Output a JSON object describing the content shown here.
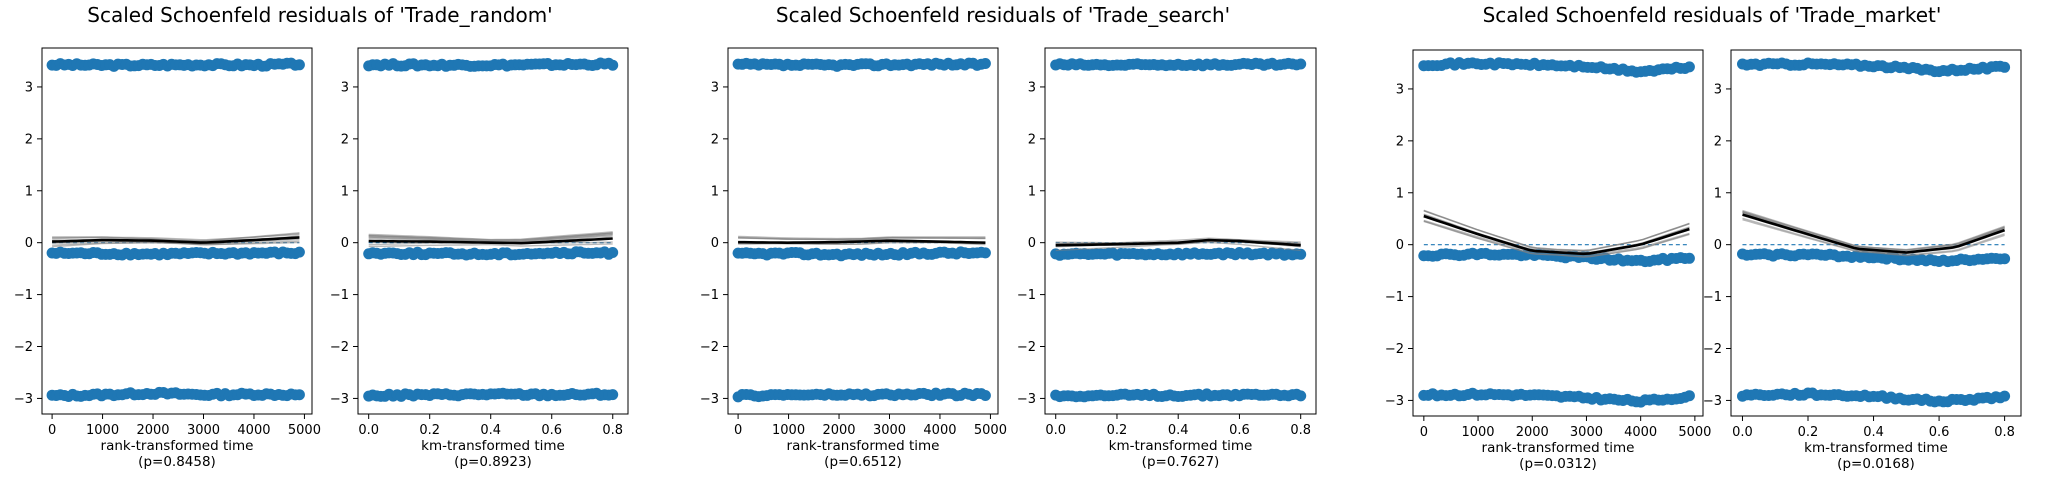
{
  "chart_data": [
    {
      "type": "scatter",
      "title": "Scaled Schoenfeld residuals of 'Trade_random'",
      "xlabel": "rank-transformed time",
      "pvalue": "(p=0.8458)",
      "xlim": [
        -200,
        5150
      ],
      "ylim": [
        -3.3,
        3.75
      ],
      "xticks": [
        0,
        1000,
        2000,
        3000,
        4000,
        5000
      ],
      "xtick_labels": [
        "0",
        "1000",
        "2000",
        "3000",
        "4000",
        "5000"
      ],
      "yticks": [
        -3,
        -2,
        -1,
        0,
        1,
        2,
        3
      ],
      "ytick_labels": [
        "−3",
        "−2",
        "−1",
        "0",
        "1",
        "2",
        "3"
      ],
      "point_color": "#1f77b4",
      "bands": [
        {
          "x": [
            0,
            1000,
            2000,
            3000,
            4000,
            4900
          ],
          "y": [
            3.43,
            3.42,
            3.42,
            3.43,
            3.42,
            3.44
          ]
        },
        {
          "x": [
            0,
            1000,
            2000,
            3000,
            4000,
            4900
          ],
          "y": [
            -0.2,
            -0.21,
            -0.22,
            -0.21,
            -0.2,
            -0.2
          ]
        },
        {
          "x": [
            0,
            1000,
            2000,
            3000,
            4000,
            4900
          ],
          "y": [
            -2.95,
            -2.93,
            -2.9,
            -2.93,
            -2.92,
            -2.93
          ]
        }
      ],
      "trend": {
        "x": [
          0,
          1000,
          2000,
          3000,
          4000,
          4900
        ],
        "y": [
          0.02,
          0.05,
          0.04,
          0.0,
          0.05,
          0.1
        ]
      },
      "zero_line": true
    },
    {
      "type": "scatter",
      "title": "",
      "xlabel": "km-transformed time",
      "pvalue": "(p=0.8923)",
      "xlim": [
        -0.035,
        0.85
      ],
      "ylim": [
        -3.3,
        3.75
      ],
      "xticks": [
        0,
        0.2,
        0.4,
        0.6,
        0.8
      ],
      "xtick_labels": [
        "0.0",
        "0.2",
        "0.4",
        "0.6",
        "0.8"
      ],
      "yticks": [
        -3,
        -2,
        -1,
        0,
        1,
        2,
        3
      ],
      "ytick_labels": [
        "−3",
        "−2",
        "−1",
        "0",
        "1",
        "2",
        "3"
      ],
      "point_color": "#1f77b4",
      "bands": [
        {
          "x": [
            0,
            0.2,
            0.4,
            0.6,
            0.8
          ],
          "y": [
            3.43,
            3.42,
            3.42,
            3.43,
            3.44
          ]
        },
        {
          "x": [
            0,
            0.2,
            0.4,
            0.6,
            0.8
          ],
          "y": [
            -0.2,
            -0.21,
            -0.22,
            -0.2,
            -0.2
          ]
        },
        {
          "x": [
            0,
            0.2,
            0.4,
            0.6,
            0.8
          ],
          "y": [
            -2.95,
            -2.93,
            -2.92,
            -2.93,
            -2.92
          ]
        }
      ],
      "trend": {
        "x": [
          0,
          0.2,
          0.4,
          0.5,
          0.6,
          0.8
        ],
        "y": [
          0.03,
          0.02,
          0.0,
          -0.01,
          0.02,
          0.08
        ]
      },
      "zero_line": true
    },
    {
      "type": "scatter",
      "title": "Scaled Schoenfeld residuals of 'Trade_search'",
      "xlabel": "rank-transformed time",
      "pvalue": "(p=0.6512)",
      "xlim": [
        -200,
        5150
      ],
      "ylim": [
        -3.3,
        3.75
      ],
      "xticks": [
        0,
        1000,
        2000,
        3000,
        4000,
        5000
      ],
      "xtick_labels": [
        "0",
        "1000",
        "2000",
        "3000",
        "4000",
        "5000"
      ],
      "yticks": [
        -3,
        -2,
        -1,
        0,
        1,
        2,
        3
      ],
      "ytick_labels": [
        "−3",
        "−2",
        "−1",
        "0",
        "1",
        "2",
        "3"
      ],
      "point_color": "#1f77b4",
      "bands": [
        {
          "x": [
            0,
            1000,
            2000,
            3000,
            4000,
            4900
          ],
          "y": [
            3.43,
            3.42,
            3.42,
            3.43,
            3.44,
            3.43
          ]
        },
        {
          "x": [
            0,
            1000,
            2000,
            3000,
            4000,
            4900
          ],
          "y": [
            -0.22,
            -0.21,
            -0.23,
            -0.22,
            -0.2,
            -0.2
          ]
        },
        {
          "x": [
            0,
            1000,
            2000,
            3000,
            4000,
            4900
          ],
          "y": [
            -2.95,
            -2.93,
            -2.93,
            -2.93,
            -2.92,
            -2.93
          ]
        }
      ],
      "trend": {
        "x": [
          0,
          1000,
          2000,
          3000,
          4000,
          4900
        ],
        "y": [
          0.01,
          0.0,
          0.01,
          0.04,
          0.02,
          0.0
        ]
      },
      "zero_line": true
    },
    {
      "type": "scatter",
      "title": "",
      "xlabel": "km-transformed time",
      "pvalue": "(p=0.7627)",
      "xlim": [
        -0.035,
        0.85
      ],
      "ylim": [
        -3.3,
        3.75
      ],
      "xticks": [
        0,
        0.2,
        0.4,
        0.6,
        0.8
      ],
      "xtick_labels": [
        "0.0",
        "0.2",
        "0.4",
        "0.6",
        "0.8"
      ],
      "yticks": [
        -3,
        -2,
        -1,
        0,
        1,
        2,
        3
      ],
      "ytick_labels": [
        "−3",
        "−2",
        "−1",
        "0",
        "1",
        "2",
        "3"
      ],
      "point_color": "#1f77b4",
      "bands": [
        {
          "x": [
            0,
            0.2,
            0.4,
            0.6,
            0.8
          ],
          "y": [
            3.43,
            3.42,
            3.43,
            3.43,
            3.43
          ]
        },
        {
          "x": [
            0,
            0.2,
            0.4,
            0.6,
            0.8
          ],
          "y": [
            -0.22,
            -0.22,
            -0.22,
            -0.21,
            -0.22
          ]
        },
        {
          "x": [
            0,
            0.2,
            0.4,
            0.6,
            0.8
          ],
          "y": [
            -2.95,
            -2.94,
            -2.94,
            -2.93,
            -2.93
          ]
        }
      ],
      "trend": {
        "x": [
          0,
          0.2,
          0.4,
          0.5,
          0.6,
          0.8
        ],
        "y": [
          -0.05,
          -0.03,
          0.0,
          0.05,
          0.03,
          -0.05
        ]
      },
      "zero_line": true
    },
    {
      "type": "scatter",
      "title": "Scaled Schoenfeld residuals of 'Trade_market'",
      "xlabel": "rank-transformed time",
      "pvalue": "(p=0.0312)",
      "xlim": [
        -200,
        5150
      ],
      "ylim": [
        -3.3,
        3.75
      ],
      "xticks": [
        0,
        1000,
        2000,
        3000,
        4000,
        5000
      ],
      "xtick_labels": [
        "0",
        "1000",
        "2000",
        "3000",
        "4000",
        "5000"
      ],
      "yticks": [
        -3,
        -2,
        -1,
        0,
        1,
        2,
        3
      ],
      "ytick_labels": [
        "−3",
        "−2",
        "−1",
        "0",
        "1",
        "2",
        "3"
      ],
      "point_color": "#1f77b4",
      "bands": [
        {
          "x": [
            0,
            1000,
            2000,
            3000,
            4000,
            4900
          ],
          "y": [
            3.47,
            3.49,
            3.47,
            3.43,
            3.33,
            3.42
          ]
        },
        {
          "x": [
            0,
            1000,
            2000,
            3000,
            4000,
            4900
          ],
          "y": [
            -0.2,
            -0.18,
            -0.2,
            -0.25,
            -0.32,
            -0.25
          ]
        },
        {
          "x": [
            0,
            1000,
            2000,
            3000,
            4000,
            4900
          ],
          "y": [
            -2.9,
            -2.88,
            -2.9,
            -2.95,
            -3.02,
            -2.93
          ]
        }
      ],
      "trend": {
        "x": [
          0,
          1000,
          2000,
          3000,
          4000,
          4900
        ],
        "y": [
          0.55,
          0.2,
          -0.12,
          -0.18,
          0.0,
          0.3
        ]
      },
      "zero_line": true
    },
    {
      "type": "scatter",
      "title": "",
      "xlabel": "km-transformed time",
      "pvalue": "(p=0.0168)",
      "xlim": [
        -0.035,
        0.85
      ],
      "ylim": [
        -3.3,
        3.75
      ],
      "xticks": [
        0,
        0.2,
        0.4,
        0.6,
        0.8
      ],
      "xtick_labels": [
        "0.0",
        "0.2",
        "0.4",
        "0.6",
        "0.8"
      ],
      "yticks": [
        -3,
        -2,
        -1,
        0,
        1,
        2,
        3
      ],
      "ytick_labels": [
        "−3",
        "−2",
        "−1",
        "0",
        "1",
        "2",
        "3"
      ],
      "point_color": "#1f77b4",
      "bands": [
        {
          "x": [
            0,
            0.2,
            0.4,
            0.6,
            0.8
          ],
          "y": [
            3.47,
            3.48,
            3.45,
            3.35,
            3.42
          ]
        },
        {
          "x": [
            0,
            0.2,
            0.4,
            0.6,
            0.8
          ],
          "y": [
            -0.2,
            -0.19,
            -0.24,
            -0.32,
            -0.25
          ]
        },
        {
          "x": [
            0,
            0.2,
            0.4,
            0.6,
            0.8
          ],
          "y": [
            -2.9,
            -2.88,
            -2.92,
            -3.02,
            -2.93
          ]
        }
      ],
      "trend": {
        "x": [
          0,
          0.2,
          0.35,
          0.5,
          0.65,
          0.8
        ],
        "y": [
          0.58,
          0.2,
          -0.08,
          -0.15,
          -0.05,
          0.28
        ]
      },
      "zero_line": true
    }
  ]
}
